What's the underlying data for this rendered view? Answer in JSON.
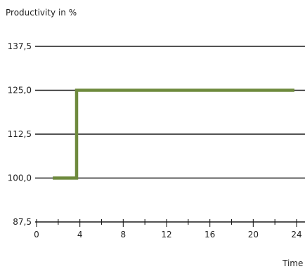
{
  "chart_data": {
    "type": "line",
    "ylabel": "Productivity in %",
    "xlabel": "Time",
    "xlim": [
      0,
      24
    ],
    "ylim": [
      87.5,
      137.5
    ],
    "x_ticks": [
      "0",
      "4",
      "8",
      "12",
      "16",
      "20",
      "24"
    ],
    "x_minor_step": 2,
    "y_ticks": [
      "87,5",
      "100,0",
      "112,5",
      "125,0",
      "137,5"
    ],
    "grid": true,
    "series": [
      {
        "x": [
          1.5,
          3.7,
          3.7,
          23.8
        ],
        "y": [
          100.0,
          100.0,
          125.0,
          125.0
        ]
      }
    ],
    "colors": {
      "series": "#6e8a3d",
      "gridline": "#1a1a1a",
      "text": "#222222"
    }
  }
}
